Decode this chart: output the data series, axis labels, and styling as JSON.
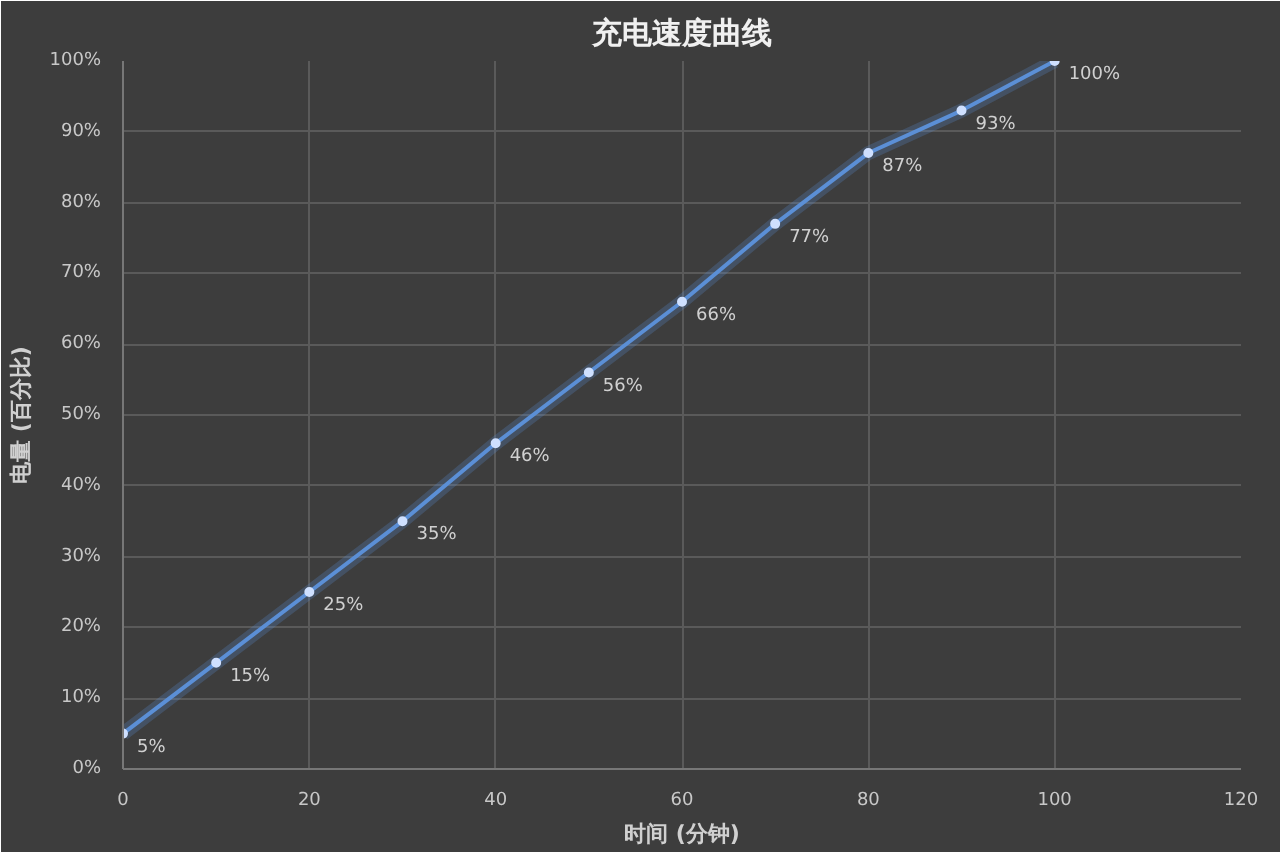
{
  "chart_data": {
    "type": "line",
    "title": "充电速度曲线",
    "xlabel": "时间 (分钟)",
    "ylabel": "电量 (百分比)",
    "x": [
      0,
      10,
      20,
      30,
      40,
      50,
      60,
      70,
      80,
      90,
      100
    ],
    "series": [
      {
        "color": "#5b8fd6",
        "values": [
          5,
          15,
          25,
          35,
          46,
          56,
          66,
          77,
          87,
          93,
          100
        ],
        "value_labels": [
          "5%",
          "15%",
          "25%",
          "35%",
          "46%",
          "56%",
          "66%",
          "77%",
          "87%",
          "93%",
          "100%"
        ]
      }
    ],
    "xlim": [
      0,
      120
    ],
    "xticks": [
      0,
      20,
      40,
      60,
      80,
      100,
      120
    ],
    "ylim": [
      0,
      100
    ],
    "yticks": [
      {
        "value": 0,
        "label": "0%"
      },
      {
        "value": 10,
        "label": "10%"
      },
      {
        "value": 20,
        "label": "20%"
      },
      {
        "value": 30,
        "label": "30%"
      },
      {
        "value": 40,
        "label": "40%"
      },
      {
        "value": 50,
        "label": "50%"
      },
      {
        "value": 60,
        "label": "60%"
      },
      {
        "value": 70,
        "label": "70%"
      },
      {
        "value": 80,
        "label": "80%"
      },
      {
        "value": 90,
        "label": "90%"
      },
      {
        "value": 100,
        "label": "100%"
      }
    ],
    "grid": true,
    "marker": "circle",
    "line_style": "solid"
  }
}
